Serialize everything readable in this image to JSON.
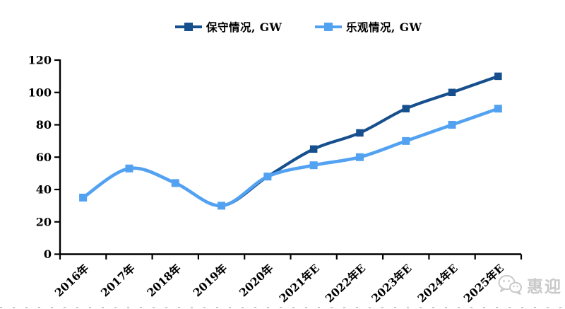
{
  "watermark": {
    "text": "惠迎",
    "icon": "wechat-icon"
  },
  "colors": {
    "axis": "#000000",
    "watermark": "#c9c9c9"
  },
  "chart_data": {
    "type": "line",
    "title": "",
    "xlabel": "",
    "ylabel": "",
    "categories": [
      "2016年",
      "2017年",
      "2018年",
      "2019年",
      "2020年",
      "2021年E",
      "2022年E",
      "2023年E",
      "2024年E",
      "2025年E"
    ],
    "series": [
      {
        "name": "保守情况, GW",
        "color": "#164F8D",
        "values": [
          35,
          53,
          44,
          30,
          48,
          65,
          75,
          90,
          100,
          110
        ]
      },
      {
        "name": "乐观情况, GW",
        "color": "#53A2F1",
        "values": [
          35,
          53,
          44,
          30,
          48,
          55,
          60,
          70,
          80,
          90
        ]
      }
    ],
    "ylim": [
      0,
      120
    ],
    "yticks": [
      0,
      20,
      40,
      60,
      80,
      100,
      120
    ],
    "legend_position": "top",
    "grid": false,
    "smooth": true
  }
}
